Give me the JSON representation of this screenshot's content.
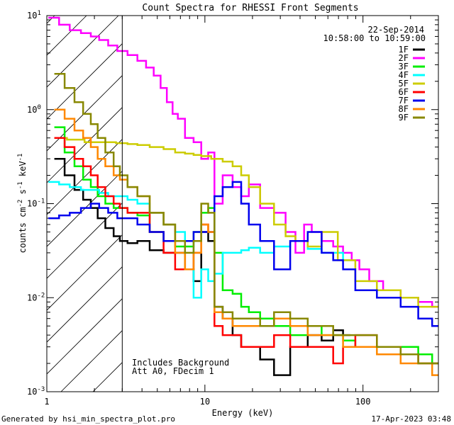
{
  "chart_data": {
    "type": "line",
    "title": "Count Spectra for RHESSI Front Segments",
    "xlabel": "Energy (keV)",
    "ylabel_base": "counts cm",
    "ylabel_exp1": "-2",
    "ylabel_mid1": " s",
    "ylabel_exp2": "-1",
    "ylabel_mid2": " keV",
    "ylabel_exp3": "-1",
    "xscale": "log",
    "yscale": "log",
    "xlim": [
      1,
      300
    ],
    "ylim": [
      0.001,
      10
    ],
    "x_ticks": [
      {
        "value": 1,
        "label": "1"
      },
      {
        "value": 10,
        "label": "10"
      },
      {
        "value": 100,
        "label": "100"
      }
    ],
    "y_ticks": [
      {
        "value": 0.001,
        "base": "10",
        "exp": "-3"
      },
      {
        "value": 0.01,
        "base": "10",
        "exp": "-2"
      },
      {
        "value": 0.1,
        "base": "10",
        "exp": "-1"
      },
      {
        "value": 1,
        "base": "10",
        "exp": "0"
      },
      {
        "value": 10,
        "base": "10",
        "exp": "1"
      }
    ],
    "date": "22-Sep-2014",
    "time_range": "10:58:00 to 10:59:00",
    "annotations": [
      "Includes Background",
      "Att A0, FDecim 1"
    ],
    "shaded_region": [
      1,
      3
    ],
    "footer_left": "Generated by hsi_min_spectra_plot.pro",
    "footer_right": "17-Apr-2023 03:48",
    "series": [
      {
        "name": "1F",
        "color": "#000000",
        "x": [
          1.2,
          1.4,
          1.6,
          1.8,
          2.0,
          2.2,
          2.5,
          2.8,
          3.0,
          3.5,
          4,
          5,
          6,
          7,
          8,
          9,
          10,
          11,
          12,
          14,
          16,
          18,
          20,
          25,
          30,
          40,
          50,
          60,
          70,
          80
        ],
        "y": [
          0.3,
          0.2,
          0.14,
          0.11,
          0.09,
          0.07,
          0.055,
          0.045,
          0.04,
          0.038,
          0.04,
          0.032,
          0.03,
          0.03,
          0.02,
          0.015,
          0.05,
          0.04,
          0.008,
          0.006,
          0.004,
          0.003,
          0.003,
          0.0022,
          0.0015,
          0.003,
          0.004,
          0.0035,
          0.0045,
          0.004
        ]
      },
      {
        "name": "2F",
        "color": "#ff00ff",
        "x": [
          1.1,
          1.3,
          1.5,
          1.8,
          2.0,
          2.3,
          2.6,
          3.0,
          3.5,
          4,
          4.5,
          5,
          5.5,
          6,
          6.5,
          7,
          8,
          9,
          10,
          11,
          12,
          14,
          16,
          18,
          20,
          25,
          30,
          35,
          40,
          45,
          50,
          60,
          70,
          80,
          90,
          100,
          120,
          150,
          200,
          250,
          300
        ],
        "y": [
          9.5,
          8,
          7,
          6.5,
          6,
          5.5,
          4.8,
          4.2,
          3.8,
          3.3,
          2.8,
          2.3,
          1.7,
          1.2,
          0.9,
          0.8,
          0.5,
          0.45,
          0.3,
          0.35,
          0.1,
          0.2,
          0.15,
          0.12,
          0.16,
          0.09,
          0.08,
          0.05,
          0.03,
          0.06,
          0.05,
          0.04,
          0.035,
          0.03,
          0.025,
          0.02,
          0.015,
          0.012,
          0.01,
          0.009,
          0.008
        ]
      },
      {
        "name": "3F",
        "color": "#00ee00",
        "x": [
          1.2,
          1.4,
          1.6,
          1.8,
          2.0,
          2.2,
          2.5,
          2.8,
          3.0,
          3.5,
          4,
          5,
          6,
          7,
          8,
          9,
          10,
          11,
          12,
          14,
          16,
          18,
          20,
          25,
          30,
          40,
          50,
          60,
          70,
          80,
          100,
          150,
          200,
          250,
          300
        ],
        "y": [
          0.65,
          0.35,
          0.25,
          0.18,
          0.15,
          0.12,
          0.1,
          0.09,
          0.09,
          0.08,
          0.075,
          0.05,
          0.04,
          0.035,
          0.035,
          0.05,
          0.08,
          0.09,
          0.03,
          0.012,
          0.011,
          0.008,
          0.007,
          0.006,
          0.005,
          0.004,
          0.005,
          0.004,
          0.004,
          0.0035,
          0.003,
          0.003,
          0.003,
          0.0025,
          0.002
        ]
      },
      {
        "name": "4F",
        "color": "#00ffff",
        "x": [
          1.1,
          1.3,
          1.5,
          1.8,
          2.0,
          2.3,
          2.6,
          3.0,
          3.5,
          4,
          5,
          6,
          7,
          8,
          9,
          10,
          11,
          12,
          14,
          16,
          18,
          20,
          25,
          30,
          40,
          50,
          60,
          70,
          80
        ],
        "y": [
          0.17,
          0.16,
          0.15,
          0.14,
          0.14,
          0.13,
          0.12,
          0.12,
          0.11,
          0.1,
          0.08,
          0.06,
          0.05,
          0.04,
          0.01,
          0.02,
          0.015,
          0.018,
          0.03,
          0.03,
          0.032,
          0.034,
          0.03,
          0.035,
          0.04,
          0.033,
          0.03,
          0.03,
          0.025
        ]
      },
      {
        "name": "5F",
        "color": "#cccc00",
        "x": [
          1.2,
          1.5,
          2.0,
          2.5,
          3.0,
          3.5,
          4,
          5,
          6,
          7,
          8,
          9,
          10,
          12,
          14,
          16,
          18,
          20,
          25,
          30,
          35,
          40,
          50,
          60,
          80,
          100,
          150,
          200,
          250,
          300
        ],
        "y": [
          0.5,
          0.48,
          0.45,
          0.45,
          0.44,
          0.43,
          0.42,
          0.4,
          0.38,
          0.35,
          0.34,
          0.33,
          0.32,
          0.3,
          0.28,
          0.25,
          0.2,
          0.15,
          0.1,
          0.06,
          0.045,
          0.04,
          0.035,
          0.05,
          0.025,
          0.015,
          0.012,
          0.01,
          0.008,
          0.008
        ]
      },
      {
        "name": "6F",
        "color": "#ff0000",
        "x": [
          1.2,
          1.4,
          1.6,
          1.8,
          2.0,
          2.2,
          2.5,
          2.8,
          3.0,
          3.5,
          4,
          5,
          6,
          7,
          8,
          9,
          10,
          11,
          12,
          14,
          16,
          18,
          20,
          25,
          30,
          40,
          50,
          60,
          70,
          80,
          100,
          150,
          200,
          250,
          300
        ],
        "y": [
          0.5,
          0.4,
          0.3,
          0.25,
          0.2,
          0.15,
          0.12,
          0.1,
          0.09,
          0.08,
          0.08,
          0.05,
          0.03,
          0.02,
          0.02,
          0.03,
          0.06,
          0.05,
          0.005,
          0.004,
          0.004,
          0.003,
          0.003,
          0.003,
          0.004,
          0.003,
          0.003,
          0.003,
          0.002,
          0.003,
          0.004,
          0.003,
          0.0025,
          0.002,
          0.002
        ]
      },
      {
        "name": "7F",
        "color": "#0000ee",
        "x": [
          1.1,
          1.3,
          1.5,
          1.8,
          2.0,
          2.3,
          2.6,
          3.0,
          3.5,
          4,
          5,
          6,
          7,
          8,
          9,
          10,
          11,
          12,
          14,
          16,
          18,
          20,
          25,
          30,
          40,
          50,
          60,
          70,
          80,
          100,
          150,
          200,
          250,
          300
        ],
        "y": [
          0.07,
          0.075,
          0.08,
          0.09,
          0.1,
          0.09,
          0.08,
          0.07,
          0.07,
          0.06,
          0.05,
          0.04,
          0.04,
          0.04,
          0.05,
          0.05,
          0.05,
          0.12,
          0.15,
          0.17,
          0.1,
          0.06,
          0.04,
          0.02,
          0.04,
          0.05,
          0.03,
          0.025,
          0.02,
          0.012,
          0.01,
          0.008,
          0.006,
          0.005
        ]
      },
      {
        "name": "8F",
        "color": "#ff8800",
        "x": [
          1.2,
          1.4,
          1.6,
          1.8,
          2.0,
          2.2,
          2.5,
          2.8,
          3.0,
          3.5,
          4,
          5,
          6,
          7,
          8,
          9,
          10,
          11,
          12,
          14,
          16,
          18,
          20,
          25,
          30,
          40,
          50,
          60,
          70,
          80,
          100,
          150,
          200,
          250,
          300
        ],
        "y": [
          1.0,
          0.8,
          0.6,
          0.5,
          0.4,
          0.3,
          0.25,
          0.2,
          0.18,
          0.15,
          0.12,
          0.08,
          0.06,
          0.03,
          0.02,
          0.03,
          0.06,
          0.05,
          0.007,
          0.006,
          0.005,
          0.005,
          0.005,
          0.005,
          0.006,
          0.005,
          0.004,
          0.004,
          0.004,
          0.003,
          0.003,
          0.0025,
          0.002,
          0.002,
          0.0015
        ]
      },
      {
        "name": "9F",
        "color": "#888800",
        "x": [
          1.2,
          1.4,
          1.6,
          1.8,
          2.0,
          2.2,
          2.5,
          2.8,
          3.0,
          3.5,
          4,
          5,
          6,
          7,
          8,
          9,
          10,
          11,
          12,
          14,
          16,
          18,
          20,
          25,
          30,
          40,
          50,
          60,
          70,
          80,
          100,
          150,
          200,
          250,
          300
        ],
        "y": [
          2.4,
          1.7,
          1.2,
          0.9,
          0.7,
          0.5,
          0.35,
          0.25,
          0.2,
          0.15,
          0.12,
          0.08,
          0.06,
          0.04,
          0.03,
          0.04,
          0.1,
          0.08,
          0.008,
          0.007,
          0.006,
          0.006,
          0.006,
          0.005,
          0.007,
          0.006,
          0.005,
          0.005,
          0.004,
          0.004,
          0.004,
          0.003,
          0.0025,
          0.002,
          0.002
        ]
      }
    ]
  }
}
